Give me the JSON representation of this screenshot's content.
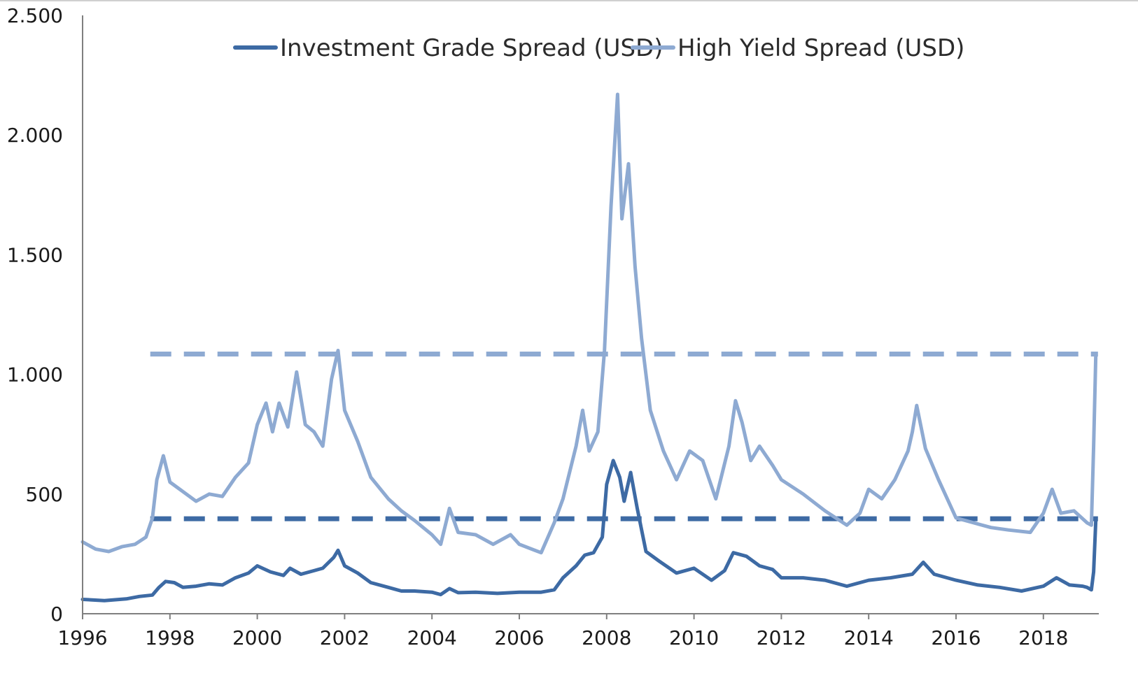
{
  "chart_data": {
    "type": "line",
    "title": "",
    "xlabel": "",
    "ylabel": "",
    "xlim": [
      1996,
      2019.25
    ],
    "ylim": [
      0,
      2500
    ],
    "grid": false,
    "legend_position": "top-center",
    "x_tick_labels": [
      {
        "value": 1996,
        "label": "1996"
      },
      {
        "value": 1998,
        "label": "1998"
      },
      {
        "value": 2000,
        "label": "2000"
      },
      {
        "value": 2002,
        "label": "2002"
      },
      {
        "value": 2004,
        "label": "2004"
      },
      {
        "value": 2006,
        "label": "2006"
      },
      {
        "value": 2008,
        "label": "2008"
      },
      {
        "value": 2010,
        "label": "2010"
      },
      {
        "value": 2012,
        "label": "2012"
      },
      {
        "value": 2014,
        "label": "2014"
      },
      {
        "value": 2016,
        "label": "2016"
      },
      {
        "value": 2018,
        "label": "2018"
      }
    ],
    "y_tick_labels": [
      {
        "value": 0,
        "label": "0"
      },
      {
        "value": 500,
        "label": "500"
      },
      {
        "value": 1000,
        "label": "1.000"
      },
      {
        "value": 1500,
        "label": "1.500"
      },
      {
        "value": 2000,
        "label": "2.000"
      },
      {
        "value": 2500,
        "label": "2.500"
      }
    ],
    "series": [
      {
        "name": "Investment Grade Spread (USD)",
        "color": "#3d6aa4",
        "points": [
          [
            1996.0,
            60
          ],
          [
            1996.5,
            55
          ],
          [
            1997.0,
            62
          ],
          [
            1997.3,
            72
          ],
          [
            1997.6,
            78
          ],
          [
            1997.75,
            110
          ],
          [
            1997.9,
            135
          ],
          [
            1998.1,
            130
          ],
          [
            1998.3,
            110
          ],
          [
            1998.6,
            115
          ],
          [
            1998.9,
            125
          ],
          [
            1999.2,
            120
          ],
          [
            1999.5,
            150
          ],
          [
            1999.8,
            170
          ],
          [
            2000.0,
            200
          ],
          [
            2000.3,
            175
          ],
          [
            2000.6,
            160
          ],
          [
            2000.75,
            190
          ],
          [
            2001.0,
            165
          ],
          [
            2001.3,
            180
          ],
          [
            2001.5,
            190
          ],
          [
            2001.75,
            235
          ],
          [
            2001.85,
            265
          ],
          [
            2002.0,
            200
          ],
          [
            2002.3,
            170
          ],
          [
            2002.6,
            130
          ],
          [
            2003.0,
            110
          ],
          [
            2003.3,
            95
          ],
          [
            2003.6,
            95
          ],
          [
            2004.0,
            90
          ],
          [
            2004.2,
            80
          ],
          [
            2004.4,
            105
          ],
          [
            2004.6,
            88
          ],
          [
            2005.0,
            90
          ],
          [
            2005.5,
            85
          ],
          [
            2006.0,
            90
          ],
          [
            2006.5,
            90
          ],
          [
            2006.8,
            100
          ],
          [
            2007.0,
            150
          ],
          [
            2007.3,
            200
          ],
          [
            2007.5,
            245
          ],
          [
            2007.7,
            255
          ],
          [
            2007.9,
            320
          ],
          [
            2008.0,
            540
          ],
          [
            2008.15,
            640
          ],
          [
            2008.3,
            570
          ],
          [
            2008.4,
            470
          ],
          [
            2008.55,
            590
          ],
          [
            2008.7,
            440
          ],
          [
            2008.9,
            260
          ],
          [
            2009.2,
            220
          ],
          [
            2009.6,
            170
          ],
          [
            2010.0,
            190
          ],
          [
            2010.4,
            140
          ],
          [
            2010.7,
            180
          ],
          [
            2010.9,
            255
          ],
          [
            2011.2,
            240
          ],
          [
            2011.5,
            200
          ],
          [
            2011.8,
            185
          ],
          [
            2012.0,
            150
          ],
          [
            2012.5,
            150
          ],
          [
            2013.0,
            140
          ],
          [
            2013.5,
            115
          ],
          [
            2014.0,
            140
          ],
          [
            2014.5,
            150
          ],
          [
            2015.0,
            165
          ],
          [
            2015.25,
            215
          ],
          [
            2015.5,
            165
          ],
          [
            2016.0,
            140
          ],
          [
            2016.5,
            120
          ],
          [
            2017.0,
            110
          ],
          [
            2017.5,
            95
          ],
          [
            2018.0,
            115
          ],
          [
            2018.3,
            150
          ],
          [
            2018.6,
            120
          ],
          [
            2018.9,
            115
          ],
          [
            2019.0,
            110
          ],
          [
            2019.1,
            100
          ],
          [
            2019.15,
            175
          ],
          [
            2019.2,
            390
          ]
        ]
      },
      {
        "name": "High Yield Spread (USD)",
        "color": "#8eaad2",
        "points": [
          [
            1996.0,
            300
          ],
          [
            1996.3,
            270
          ],
          [
            1996.6,
            260
          ],
          [
            1996.9,
            280
          ],
          [
            1997.2,
            290
          ],
          [
            1997.45,
            320
          ],
          [
            1997.6,
            400
          ],
          [
            1997.7,
            560
          ],
          [
            1997.85,
            660
          ],
          [
            1998.0,
            550
          ],
          [
            1998.3,
            510
          ],
          [
            1998.6,
            470
          ],
          [
            1998.9,
            500
          ],
          [
            1999.2,
            490
          ],
          [
            1999.5,
            570
          ],
          [
            1999.8,
            630
          ],
          [
            2000.0,
            790
          ],
          [
            2000.2,
            880
          ],
          [
            2000.35,
            760
          ],
          [
            2000.5,
            880
          ],
          [
            2000.7,
            780
          ],
          [
            2000.9,
            1010
          ],
          [
            2001.1,
            790
          ],
          [
            2001.3,
            760
          ],
          [
            2001.5,
            700
          ],
          [
            2001.7,
            980
          ],
          [
            2001.85,
            1100
          ],
          [
            2002.0,
            850
          ],
          [
            2002.3,
            720
          ],
          [
            2002.6,
            570
          ],
          [
            2003.0,
            480
          ],
          [
            2003.3,
            430
          ],
          [
            2003.6,
            390
          ],
          [
            2004.0,
            330
          ],
          [
            2004.2,
            290
          ],
          [
            2004.4,
            440
          ],
          [
            2004.6,
            340
          ],
          [
            2005.0,
            330
          ],
          [
            2005.4,
            290
          ],
          [
            2005.8,
            330
          ],
          [
            2006.0,
            290
          ],
          [
            2006.5,
            255
          ],
          [
            2006.8,
            380
          ],
          [
            2007.0,
            480
          ],
          [
            2007.3,
            700
          ],
          [
            2007.45,
            850
          ],
          [
            2007.6,
            680
          ],
          [
            2007.8,
            760
          ],
          [
            2007.95,
            1100
          ],
          [
            2008.1,
            1700
          ],
          [
            2008.25,
            2170
          ],
          [
            2008.35,
            1650
          ],
          [
            2008.5,
            1880
          ],
          [
            2008.65,
            1450
          ],
          [
            2008.8,
            1150
          ],
          [
            2009.0,
            850
          ],
          [
            2009.3,
            680
          ],
          [
            2009.6,
            560
          ],
          [
            2009.9,
            680
          ],
          [
            2010.2,
            640
          ],
          [
            2010.5,
            480
          ],
          [
            2010.8,
            700
          ],
          [
            2010.95,
            890
          ],
          [
            2011.1,
            800
          ],
          [
            2011.3,
            640
          ],
          [
            2011.5,
            700
          ],
          [
            2011.8,
            620
          ],
          [
            2012.0,
            560
          ],
          [
            2012.5,
            500
          ],
          [
            2013.0,
            430
          ],
          [
            2013.5,
            370
          ],
          [
            2013.8,
            420
          ],
          [
            2014.0,
            520
          ],
          [
            2014.3,
            480
          ],
          [
            2014.6,
            560
          ],
          [
            2014.9,
            680
          ],
          [
            2015.0,
            760
          ],
          [
            2015.1,
            870
          ],
          [
            2015.3,
            690
          ],
          [
            2015.6,
            560
          ],
          [
            2016.0,
            400
          ],
          [
            2016.4,
            380
          ],
          [
            2016.8,
            360
          ],
          [
            2017.2,
            350
          ],
          [
            2017.7,
            340
          ],
          [
            2018.0,
            420
          ],
          [
            2018.2,
            520
          ],
          [
            2018.4,
            420
          ],
          [
            2018.7,
            430
          ],
          [
            2019.0,
            380
          ],
          [
            2019.1,
            370
          ],
          [
            2019.15,
            700
          ],
          [
            2019.2,
            1080
          ]
        ]
      }
    ],
    "reference_lines": [
      {
        "series": "High Yield Spread (USD)",
        "y": 1085,
        "x_from": 1997.55,
        "x_to": 2019.25,
        "style": "dashed",
        "color": "#8eaad2"
      },
      {
        "series": "Investment Grade Spread (USD)",
        "y": 397,
        "x_from": 1997.55,
        "x_to": 2019.25,
        "style": "dashed",
        "color": "#3d6aa4"
      }
    ]
  }
}
